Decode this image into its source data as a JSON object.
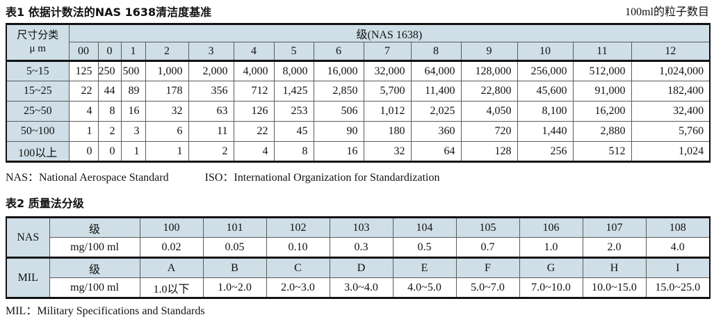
{
  "colors": {
    "header_bg": "#cfdee7",
    "border_dark": "#111111",
    "border_gray": "#5a5a5a",
    "text": "#111111"
  },
  "table1": {
    "title": "表1  依据计数法的NAS 1638清洁度基准",
    "unit_note": "100ml的粒子数目",
    "corner_line1": "尺寸分类",
    "corner_line2": "μ m",
    "group_header": "级(NAS 1638)",
    "class_headers": [
      "00",
      "0",
      "1",
      "2",
      "3",
      "4",
      "5",
      "6",
      "7",
      "8",
      "9",
      "10",
      "11",
      "12"
    ],
    "rows": [
      {
        "label": "5~15",
        "values": [
          "125",
          "250",
          "500",
          "1,000",
          "2,000",
          "4,000",
          "8,000",
          "16,000",
          "32,000",
          "64,000",
          "128,000",
          "256,000",
          "512,000",
          "1,024,000"
        ]
      },
      {
        "label": "15~25",
        "values": [
          "22",
          "44",
          "89",
          "178",
          "356",
          "712",
          "1,425",
          "2,850",
          "5,700",
          "11,400",
          "22,800",
          "45,600",
          "91,000",
          "182,400"
        ]
      },
      {
        "label": "25~50",
        "values": [
          "4",
          "8",
          "16",
          "32",
          "63",
          "126",
          "253",
          "506",
          "1,012",
          "2,025",
          "4,050",
          "8,100",
          "16,200",
          "32,400"
        ]
      },
      {
        "label": "50~100",
        "values": [
          "1",
          "2",
          "3",
          "6",
          "11",
          "22",
          "45",
          "90",
          "180",
          "360",
          "720",
          "1,440",
          "2,880",
          "5,760"
        ]
      },
      {
        "label": "100以上",
        "values": [
          "0",
          "0",
          "1",
          "1",
          "2",
          "4",
          "8",
          "16",
          "32",
          "64",
          "128",
          "256",
          "512",
          "1,024"
        ]
      }
    ],
    "note_nas": "NAS：National Aerospace Standard",
    "note_iso": "ISO：International Organization for Standardization"
  },
  "table2": {
    "title": "表2  质量法分级",
    "sections": [
      {
        "name": "NAS",
        "class_label": "级",
        "classes": [
          "100",
          "101",
          "102",
          "103",
          "104",
          "105",
          "106",
          "107",
          "108"
        ],
        "mg_label": "mg/100 ml",
        "mg_values": [
          "0.02",
          "0.05",
          "0.10",
          "0.3",
          "0.5",
          "0.7",
          "1.0",
          "2.0",
          "4.0"
        ]
      },
      {
        "name": "MIL",
        "class_label": "级",
        "classes": [
          "A",
          "B",
          "C",
          "D",
          "E",
          "F",
          "G",
          "H",
          "I"
        ],
        "mg_label": "mg/100 ml",
        "mg_values": [
          "1.0以下",
          "1.0~2.0",
          "2.0~3.0",
          "3.0~4.0",
          "4.0~5.0",
          "5.0~7.0",
          "7.0~10.0",
          "10.0~15.0",
          "15.0~25.0"
        ]
      }
    ],
    "footnote": "MIL：Military Specifications and Standards"
  }
}
